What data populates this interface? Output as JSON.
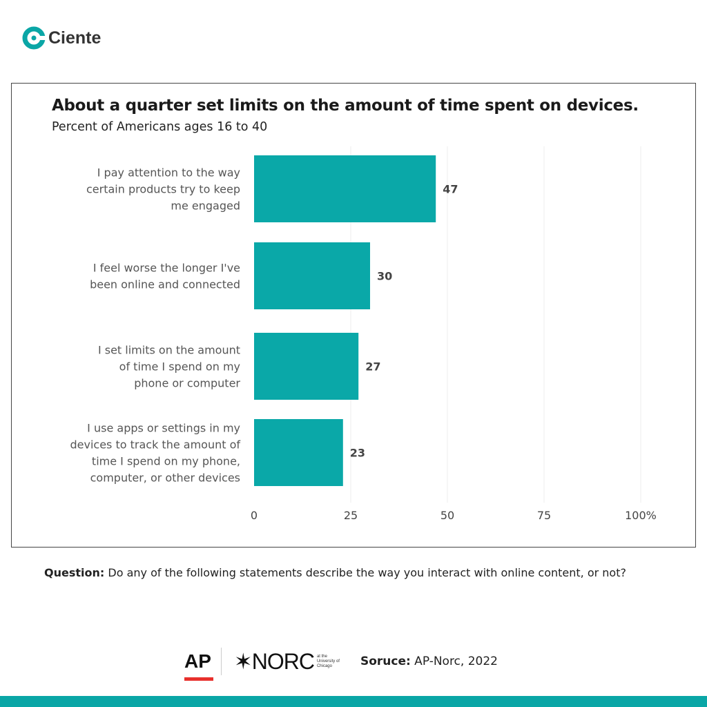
{
  "brand": {
    "name": "Ciente",
    "color": "#0aa6a6"
  },
  "chart_data": {
    "type": "bar",
    "orientation": "horizontal",
    "title": "About a quarter set limits on the amount of time spent on devices.",
    "subtitle": "Percent of Americans ages 16 to 40",
    "categories": [
      [
        "I pay attention to the way",
        "certain products try to keep",
        "me engaged"
      ],
      [
        "I feel worse the longer I've",
        "been online and connected"
      ],
      [
        "I set limits on the amount",
        "of time I spend on my",
        "phone or computer"
      ],
      [
        "I use apps or settings in my",
        "devices to track the amount of",
        "time I spend on my phone,",
        "computer, or other devices"
      ]
    ],
    "values": [
      47,
      30,
      27,
      23
    ],
    "xlim": [
      0,
      100
    ],
    "xticks": [
      "0",
      "25",
      "50",
      "75",
      "100%"
    ],
    "grid": true,
    "bar_color": "#0aa8a8"
  },
  "question": {
    "label": "Question:",
    "text": " Do any of the following statements describe the way you interact with online content, or not?"
  },
  "footer": {
    "ap": "AP",
    "norc": "NORC",
    "norc_sub": [
      "at the",
      "University of",
      "Chicago"
    ],
    "source_label": "Soruce:",
    "source_text": " AP-Norc, 2022",
    "ap_color": "#e8302c"
  }
}
